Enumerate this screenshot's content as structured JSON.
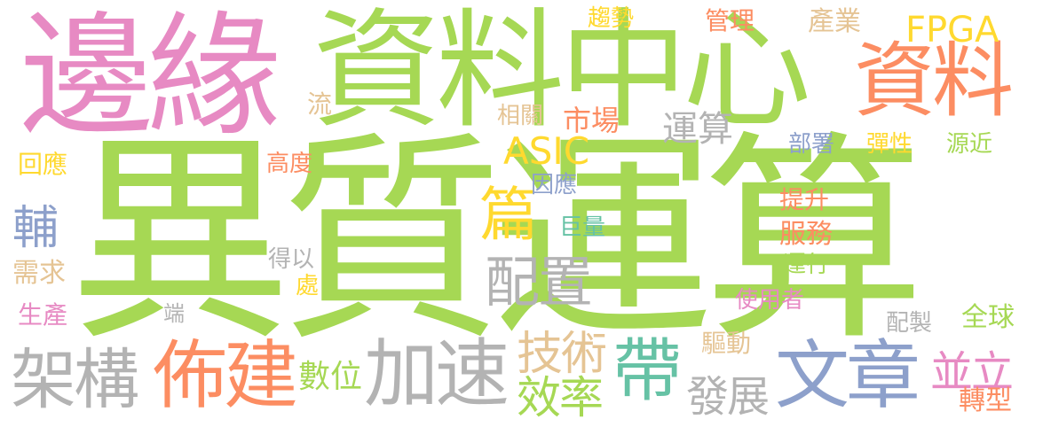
{
  "palette": {
    "green": "#a3d65a",
    "pink": "#e78ac3",
    "orange": "#fc8d62",
    "yellow": "#ffd92f",
    "teal": "#66c2a5",
    "blue": "#8da0cb",
    "gray": "#b3b3b3",
    "tan": "#e5c494"
  },
  "words": [
    {
      "text": "異質運算",
      "color": "#a6d854"
    },
    {
      "text": "邊緣",
      "color": "#e78ac3"
    },
    {
      "text": "資料中心",
      "color": "#a6d854"
    },
    {
      "text": "資料",
      "color": "#fc8d62"
    },
    {
      "text": "FPGA",
      "color": "#ffd92f"
    },
    {
      "text": "架構",
      "color": "#b3b3b3"
    },
    {
      "text": "佈建",
      "color": "#fc8d62"
    },
    {
      "text": "加速",
      "color": "#b3b3b3"
    },
    {
      "text": "文章",
      "color": "#8da0cb"
    },
    {
      "text": "帶",
      "color": "#66c2a5"
    },
    {
      "text": "篇",
      "color": "#ffd92f"
    },
    {
      "text": "配置",
      "color": "#b3b3b3"
    },
    {
      "text": "ASIC",
      "color": "#ffd92f"
    },
    {
      "text": "技術",
      "color": "#e5c494"
    },
    {
      "text": "效率",
      "color": "#a6d854"
    },
    {
      "text": "並立",
      "color": "#e78ac3"
    },
    {
      "text": "輔",
      "color": "#8da0cb"
    },
    {
      "text": "發展",
      "color": "#b3b3b3"
    },
    {
      "text": "趨勢",
      "color": "#ffd92f"
    },
    {
      "text": "管理",
      "color": "#fc8d62"
    },
    {
      "text": "產業",
      "color": "#e5c494"
    },
    {
      "text": "市場",
      "color": "#fc8d62"
    },
    {
      "text": "相關",
      "color": "#e5c494"
    },
    {
      "text": "運算",
      "color": "#b3b3b3"
    },
    {
      "text": "流",
      "color": "#e5c494"
    },
    {
      "text": "回應",
      "color": "#ffd92f"
    },
    {
      "text": "高度",
      "color": "#fc8d62"
    },
    {
      "text": "因應",
      "color": "#8da0cb"
    },
    {
      "text": "部署",
      "color": "#8da0cb"
    },
    {
      "text": "彈性",
      "color": "#ffd92f"
    },
    {
      "text": "源近",
      "color": "#a6d854"
    },
    {
      "text": "提升",
      "color": "#fc8d62"
    },
    {
      "text": "巨量",
      "color": "#66c2a5"
    },
    {
      "text": "服務",
      "color": "#fc8d62"
    },
    {
      "text": "需求",
      "color": "#e5c494"
    },
    {
      "text": "得以",
      "color": "#b3b3b3"
    },
    {
      "text": "運行",
      "color": "#a6d854"
    },
    {
      "text": "處",
      "color": "#ffd92f"
    },
    {
      "text": "生產",
      "color": "#e78ac3"
    },
    {
      "text": "端",
      "color": "#b3b3b3"
    },
    {
      "text": "使用者",
      "color": "#e78ac3"
    },
    {
      "text": "全球",
      "color": "#a6d854"
    },
    {
      "text": "配製",
      "color": "#b3b3b3"
    },
    {
      "text": "驅動",
      "color": "#e5c494"
    },
    {
      "text": "數位",
      "color": "#a6d854"
    },
    {
      "text": "轉型",
      "color": "#fc8d62"
    }
  ]
}
